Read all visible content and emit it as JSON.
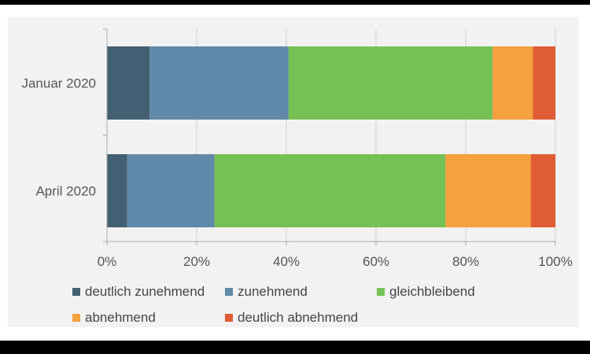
{
  "chart_data": {
    "type": "bar",
    "orientation": "horizontal",
    "stacked": true,
    "categories": [
      "Januar 2020",
      "April 2020"
    ],
    "series": [
      {
        "name": "deutlich zunehmend",
        "color": "#435f73",
        "values": [
          9.5,
          4.5
        ]
      },
      {
        "name": "zunehmend",
        "color": "#6189a9",
        "values": [
          31,
          19.5
        ]
      },
      {
        "name": "gleichbleibend",
        "color": "#76c153",
        "values": [
          45.5,
          51.5
        ]
      },
      {
        "name": "abnehmend",
        "color": "#f4a13e",
        "values": [
          9,
          19
        ]
      },
      {
        "name": "deutlich abnehmend",
        "color": "#e05c34",
        "values": [
          5,
          5.5
        ]
      }
    ],
    "xlim": [
      0,
      100
    ],
    "xticks": [
      "0%",
      "20%",
      "40%",
      "60%",
      "80%",
      "100%"
    ],
    "grid": true,
    "legend_position": "bottom"
  }
}
